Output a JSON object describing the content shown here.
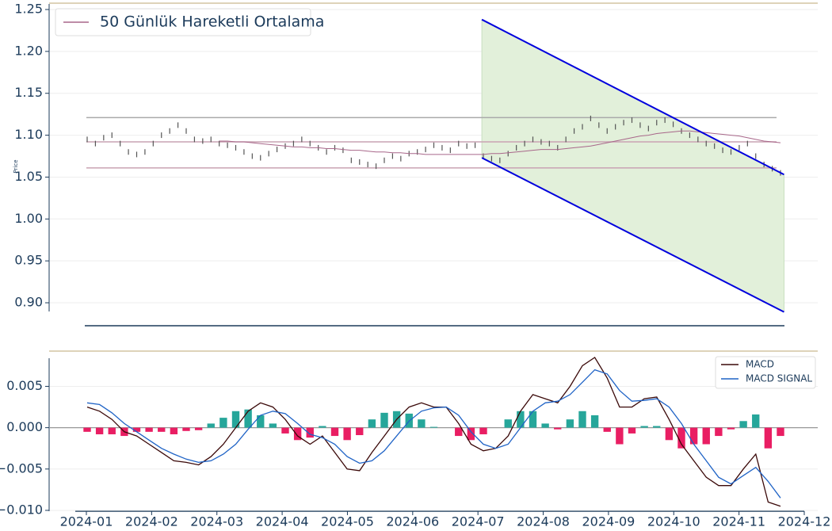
{
  "chart_data": [
    {
      "type": "candlestick",
      "ylabel": "Price",
      "ylim": [
        0.89,
        1.25
      ],
      "yticks": [
        {
          "value": 0.9,
          "label": "0.90"
        },
        0.95,
        {
          "value": 1.0,
          "label": "1.00"
        },
        1.05,
        {
          "value": 1.1,
          "label": "1.10"
        },
        1.15,
        {
          "value": 1.2,
          "label": "1.20"
        },
        1.25
      ],
      "xlim": [
        0,
        11
      ],
      "grid": true,
      "color": "#555555",
      "values": [
        1.095,
        1.09,
        1.097,
        1.1,
        1.09,
        1.08,
        1.077,
        1.08,
        1.09,
        1.1,
        1.105,
        1.112,
        1.105,
        1.095,
        1.093,
        1.095,
        1.09,
        1.088,
        1.085,
        1.08,
        1.075,
        1.073,
        1.078,
        1.083,
        1.087,
        1.09,
        1.095,
        1.09,
        1.085,
        1.08,
        1.085,
        1.082,
        1.07,
        1.068,
        1.065,
        1.063,
        1.07,
        1.075,
        1.072,
        1.078,
        1.08,
        1.083,
        1.088,
        1.085,
        1.082,
        1.09,
        1.087,
        1.088,
        1.075,
        1.072,
        1.07,
        1.078,
        1.085,
        1.09,
        1.095,
        1.092,
        1.09,
        1.085,
        1.095,
        1.105,
        1.11,
        1.12,
        1.112,
        1.105,
        1.11,
        1.115,
        1.118,
        1.112,
        1.108,
        1.115,
        1.118,
        1.113,
        1.105,
        1.1,
        1.095,
        1.09,
        1.087,
        1.082,
        1.08,
        1.085,
        1.09,
        1.075,
        1.065,
        1.06,
        1.055
      ],
      "series": [
        {
          "name": "50 Günlük Hareketli Ortalama",
          "color": "#a8678a",
          "values": [
            null,
            null,
            null,
            null,
            null,
            null,
            null,
            null,
            null,
            null,
            null,
            null,
            null,
            null,
            null,
            null,
            1.093,
            1.093,
            1.092,
            1.092,
            1.091,
            1.09,
            1.089,
            1.088,
            1.087,
            1.086,
            1.086,
            1.085,
            1.085,
            1.084,
            1.084,
            1.083,
            1.082,
            1.082,
            1.081,
            1.08,
            1.08,
            1.079,
            1.079,
            1.078,
            1.078,
            1.077,
            1.077,
            1.077,
            1.077,
            1.077,
            1.077,
            1.077,
            1.077,
            1.078,
            1.078,
            1.079,
            1.08,
            1.081,
            1.082,
            1.083,
            1.083,
            1.083,
            1.084,
            1.085,
            1.086,
            1.087,
            1.089,
            1.091,
            1.093,
            1.095,
            1.097,
            1.099,
            1.1,
            1.102,
            1.103,
            1.104,
            1.105,
            1.105,
            1.104,
            1.103,
            1.102,
            1.101,
            1.1,
            1.099,
            1.097,
            1.095,
            1.093,
            1.092,
            1.091
          ]
        }
      ],
      "legend": "upper left",
      "hlines": [
        {
          "value": 1.121,
          "color": "#aaaaaa"
        },
        {
          "value": 1.092,
          "color": "#c9a3b3"
        },
        {
          "value": 1.061,
          "color": "#c9a3b3"
        }
      ],
      "channel": {
        "color": "#0000dd",
        "fill": "#e0efd8",
        "upper": {
          "x": [
            6.06,
            10.69
          ],
          "y": [
            1.238,
            1.053
          ]
        },
        "lower": {
          "x": [
            6.06,
            10.69
          ],
          "y": [
            1.073,
            0.889
          ]
        }
      }
    },
    {
      "type": "macd",
      "ylim": [
        -0.0101,
        0.0084
      ],
      "yticks": [
        {
          "value": -0.01,
          "label": "−0.010"
        },
        {
          "value": -0.005,
          "label": "−0.005"
        },
        {
          "value": 0,
          "label": "0.000"
        },
        0.005
      ],
      "xlim": [
        0,
        11
      ],
      "xticks": [
        {
          "value": 0,
          "label": "2024-01"
        },
        {
          "value": 1,
          "label": "2024-02"
        },
        {
          "value": 2,
          "label": "2024-03"
        },
        {
          "value": 3,
          "label": "2024-04"
        },
        {
          "value": 4,
          "label": "2024-05"
        },
        {
          "value": 5,
          "label": "2024-06"
        },
        {
          "value": 6,
          "label": "2024-07"
        },
        {
          "value": 7,
          "label": "2024-08"
        },
        {
          "value": 8,
          "label": "2024-09"
        },
        {
          "value": 9,
          "label": "2024-10"
        },
        {
          "value": 10,
          "label": "2024-11"
        },
        {
          "value": 11,
          "label": "2024-12"
        }
      ],
      "grid": true,
      "legend": "upper right",
      "series": [
        {
          "name": "MACD",
          "color": "#3a0808",
          "values": [
            0.0025,
            0.002,
            0.001,
            -0.0005,
            -0.001,
            -0.002,
            -0.003,
            -0.004,
            -0.0042,
            -0.0045,
            -0.0035,
            -0.002,
            0.0,
            0.002,
            0.003,
            0.0025,
            0.001,
            -0.001,
            -0.002,
            -0.001,
            -0.003,
            -0.005,
            -0.0052,
            -0.003,
            -0.001,
            0.001,
            0.0025,
            0.003,
            0.0025,
            0.0025,
            0.0005,
            -0.002,
            -0.0028,
            -0.0025,
            -0.001,
            0.002,
            0.004,
            0.0035,
            0.003,
            0.005,
            0.0075,
            0.0085,
            0.006,
            0.0025,
            0.0025,
            0.0035,
            0.0037,
            0.001,
            -0.002,
            -0.004,
            -0.006,
            -0.007,
            -0.007,
            -0.005,
            -0.0032,
            -0.009,
            -0.0095
          ]
        },
        {
          "name": "MACD SIGNAL",
          "color": "#1f63c6",
          "values": [
            0.003,
            0.0028,
            0.0018,
            0.0005,
            -0.0005,
            -0.0015,
            -0.0025,
            -0.0032,
            -0.0038,
            -0.0042,
            -0.004,
            -0.0032,
            -0.002,
            -0.0002,
            0.0015,
            0.002,
            0.0017,
            0.0005,
            -0.0008,
            -0.0012,
            -0.002,
            -0.0035,
            -0.0043,
            -0.004,
            -0.0028,
            -0.001,
            0.0008,
            0.002,
            0.0024,
            0.0025,
            0.0015,
            -0.0005,
            -0.002,
            -0.0025,
            -0.002,
            0.0,
            0.002,
            0.003,
            0.0032,
            0.004,
            0.0055,
            0.007,
            0.0065,
            0.0045,
            0.0032,
            0.0033,
            0.0035,
            0.0025,
            0.0005,
            -0.002,
            -0.004,
            -0.006,
            -0.0068,
            -0.0058,
            -0.0048,
            -0.0065,
            -0.0085
          ]
        }
      ],
      "histogram": {
        "positive_color": "#26a69a",
        "negative_color": "#e91e63",
        "values": [
          -0.0005,
          -0.0008,
          -0.0008,
          -0.001,
          -0.0005,
          -0.0005,
          -0.0005,
          -0.0008,
          -0.0004,
          -0.0003,
          0.0005,
          0.0012,
          0.002,
          0.0022,
          0.0015,
          0.0005,
          -0.0007,
          -0.0015,
          -0.0012,
          0.0002,
          -0.001,
          -0.0015,
          -0.0009,
          0.001,
          0.0018,
          0.002,
          0.0017,
          0.001,
          0.0001,
          0.0,
          -0.001,
          -0.0015,
          -0.0008,
          0.0,
          0.001,
          0.002,
          0.002,
          0.0005,
          -0.0002,
          0.001,
          0.002,
          0.0015,
          -0.0005,
          -0.002,
          -0.0007,
          0.0002,
          0.0002,
          -0.0015,
          -0.0025,
          -0.002,
          -0.002,
          -0.001,
          -0.0002,
          0.0008,
          0.0016,
          -0.0025,
          -0.001
        ]
      }
    }
  ]
}
